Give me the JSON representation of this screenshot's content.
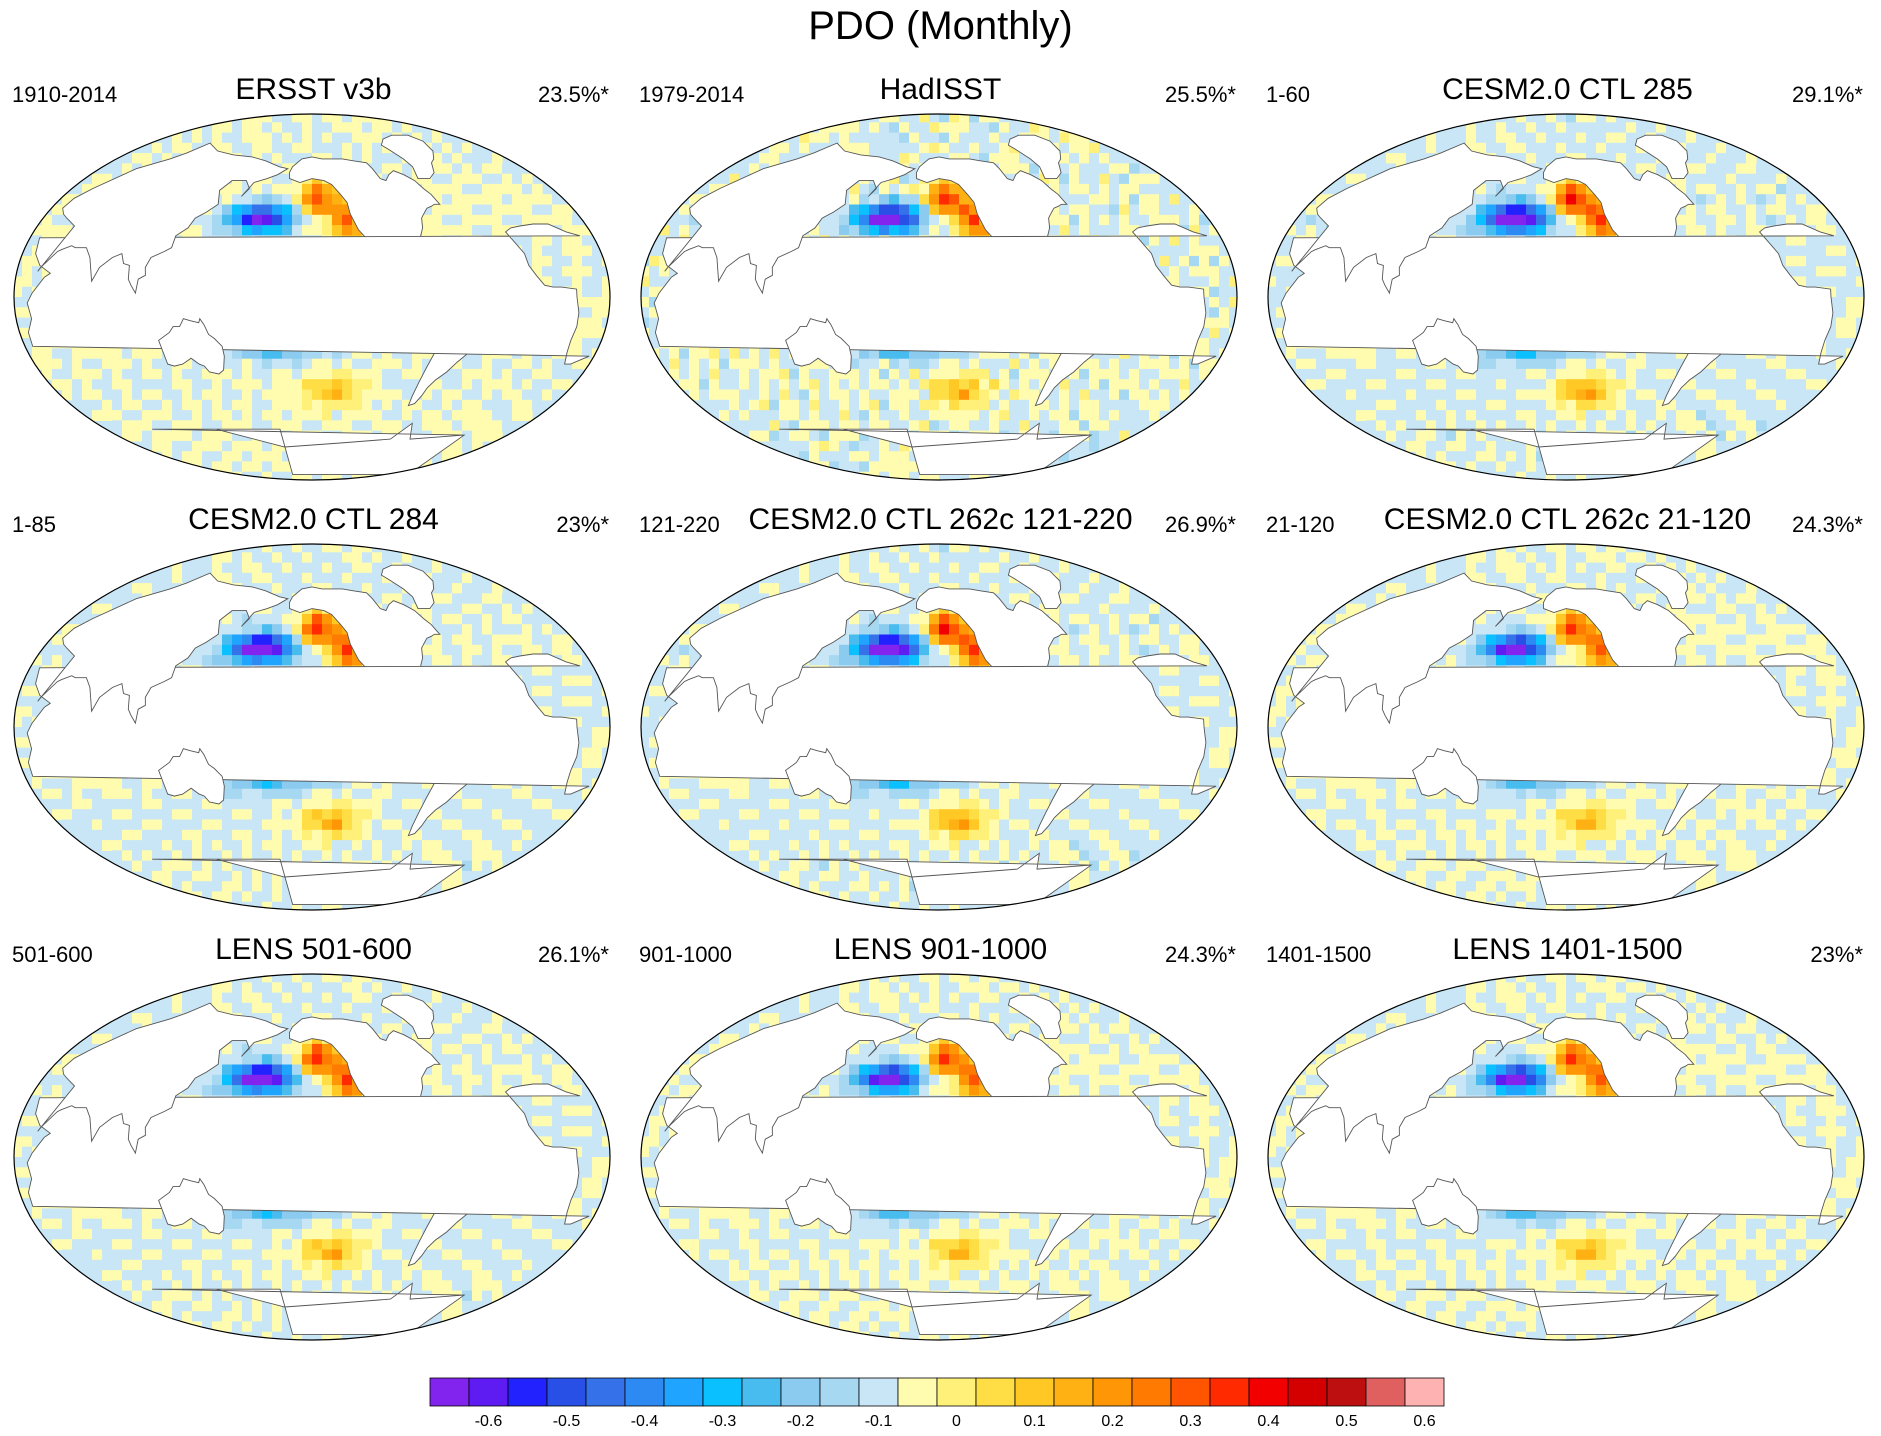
{
  "title": "PDO (Monthly)",
  "panels": [
    {
      "title": "ERSST v3b",
      "period": "1910-2014",
      "percent": "23.5%*",
      "style": "obs1",
      "amp": 0.8
    },
    {
      "title": "HadISST",
      "period": "1979-2014",
      "percent": "25.5%*",
      "style": "obs2",
      "amp": 0.9
    },
    {
      "title": "CESM2.0 CTL 285",
      "period": "1-60",
      "percent": "29.1%*",
      "style": "model",
      "amp": 1.0
    },
    {
      "title": "CESM2.0 CTL 284",
      "period": "1-85",
      "percent": "23%*",
      "style": "model",
      "amp": 0.95
    },
    {
      "title": "CESM2.0 CTL 262c 121-220",
      "period": "121-220",
      "percent": "26.9%*",
      "style": "model",
      "amp": 1.0
    },
    {
      "title": "CESM2.0 CTL 262c 21-120",
      "period": "21-120",
      "percent": "24.3%*",
      "style": "model",
      "amp": 0.85
    },
    {
      "title": "LENS 501-600",
      "period": "501-600",
      "percent": "26.1%*",
      "style": "model",
      "amp": 0.95
    },
    {
      "title": "LENS 901-1000",
      "period": "901-1000",
      "percent": "24.3%*",
      "style": "model",
      "amp": 0.85
    },
    {
      "title": "LENS 1401-1500",
      "period": "1401-1500",
      "percent": "23%*",
      "style": "model",
      "amp": 0.85
    }
  ],
  "colorbar": {
    "colors": [
      "#8323ee",
      "#5f1cf2",
      "#2222ff",
      "#2950e6",
      "#3572ea",
      "#2d8af2",
      "#1fa5ff",
      "#0ac0ff",
      "#48bbef",
      "#8acbef",
      "#a7d8f2",
      "#c8e6f6",
      "#fffcb0",
      "#fff07a",
      "#ffdd44",
      "#ffc825",
      "#ffb012",
      "#ff9606",
      "#ff7a00",
      "#ff5500",
      "#ff2a00",
      "#f20000",
      "#d40000",
      "#bd0f0f",
      "#e06060",
      "#ffb2b2"
    ],
    "ticks": [
      "-0.6",
      "-0.5",
      "-0.4",
      "-0.3",
      "-0.2",
      "-0.1",
      "0",
      "0.1",
      "0.2",
      "0.3",
      "0.4",
      "0.5",
      "0.6"
    ]
  }
}
